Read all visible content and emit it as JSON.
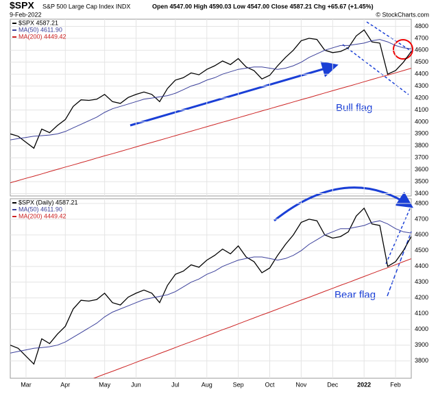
{
  "chart_data": {
    "type": "line",
    "title": "$SPX",
    "subtitle": "S&P 500 Large Cap Index INDX",
    "date": "9-Feb-2022",
    "quote": "Open 4547.00 High 4590.03 Low 4547.00 Close 4587.21 Chg +65.67 (+1.45%)",
    "credit": "© StockCharts.com",
    "categories": [
      null,
      null,
      "Mar",
      null,
      null,
      null,
      null,
      "Apr",
      null,
      null,
      null,
      null,
      "May",
      null,
      null,
      null,
      "Jun",
      null,
      null,
      null,
      null,
      "Jul",
      null,
      null,
      null,
      "Aug",
      null,
      null,
      null,
      "Sep",
      null,
      null,
      null,
      "Oct",
      null,
      null,
      null,
      "Nov",
      null,
      null,
      null,
      "Dec",
      null,
      null,
      null,
      "2022",
      null,
      null,
      null,
      "Feb",
      null,
      null
    ],
    "series": [
      {
        "name": "$SPX 4587.21",
        "color": "#000000",
        "values": [
          3900,
          3880,
          3830,
          3780,
          3940,
          3910,
          3970,
          4020,
          4130,
          4185,
          4180,
          4190,
          4230,
          4170,
          4155,
          4205,
          4230,
          4250,
          4230,
          4170,
          4280,
          4350,
          4370,
          4410,
          4395,
          4440,
          4470,
          4510,
          4480,
          4530,
          4460,
          4430,
          4360,
          4390,
          4470,
          4540,
          4600,
          4680,
          4700,
          4690,
          4600,
          4580,
          4590,
          4620,
          4720,
          4770,
          4670,
          4660,
          4400,
          4430,
          4500,
          4590
        ]
      },
      {
        "name": "MA(50) 4611.90",
        "color": "#3a3f9a",
        "values": [
          3850,
          3860,
          3870,
          3880,
          3885,
          3890,
          3900,
          3920,
          3950,
          3980,
          4010,
          4040,
          4080,
          4110,
          4130,
          4150,
          4170,
          4190,
          4200,
          4210,
          4220,
          4240,
          4270,
          4300,
          4320,
          4350,
          4370,
          4400,
          4420,
          4440,
          4450,
          4460,
          4460,
          4450,
          4440,
          4450,
          4470,
          4500,
          4540,
          4570,
          4600,
          4620,
          4640,
          4640,
          4650,
          4660,
          4680,
          4690,
          4670,
          4640,
          4620,
          4612
        ]
      },
      {
        "name": "MA(200) 4449.42",
        "color": "#cc2222",
        "values": [
          3490,
          3509,
          3528,
          3546,
          3565,
          3584,
          3603,
          3622,
          3640,
          3659,
          3678,
          3697,
          3716,
          3734,
          3753,
          3772,
          3791,
          3810,
          3828,
          3847,
          3866,
          3885,
          3904,
          3922,
          3941,
          3960,
          3979,
          3998,
          4016,
          4035,
          4054,
          4073,
          4092,
          4110,
          4129,
          4148,
          4167,
          4186,
          4204,
          4223,
          4242,
          4261,
          4280,
          4298,
          4317,
          4336,
          4355,
          4374,
          4392,
          4411,
          4430,
          4449
        ]
      }
    ],
    "panels": [
      {
        "legend": [
          "$SPX 4587.21",
          "MA(50) 4611.90",
          "MA(200) 4449.42"
        ],
        "annotation": "Bull flag",
        "ylim": [
          3380,
          4860
        ],
        "yticks": [
          3400,
          3500,
          3600,
          3700,
          3800,
          3900,
          4000,
          4100,
          4200,
          4300,
          4400,
          4500,
          4600,
          4700,
          4800
        ]
      },
      {
        "legend": [
          "$SPX (Daily) 4587.21",
          "MA(50) 4611.90",
          "MA(200) 4449.42"
        ],
        "annotation": "Bear flag",
        "ylim": [
          3690,
          4830
        ],
        "yticks": [
          3800,
          3900,
          4000,
          4100,
          4200,
          4300,
          4400,
          4500,
          4600,
          4700,
          4800
        ]
      }
    ],
    "grid": true
  }
}
